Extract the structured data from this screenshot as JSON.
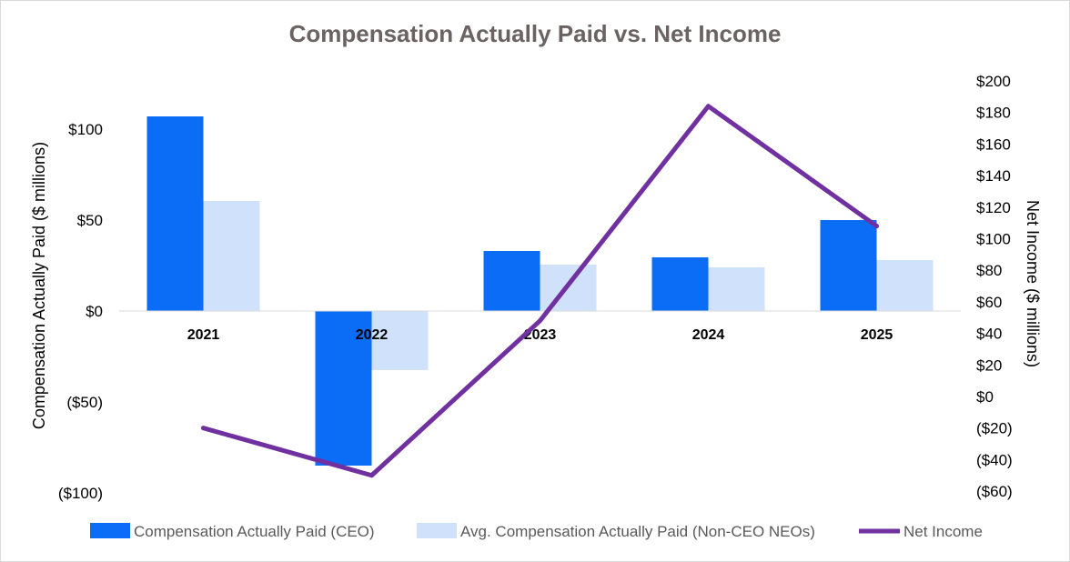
{
  "chart_data": {
    "type": "bar",
    "title": "Compensation Actually Paid vs. Net Income",
    "categories": [
      "2021",
      "2022",
      "2023",
      "2024",
      "2025"
    ],
    "series": [
      {
        "name": "Compensation Actually Paid (CEO)",
        "kind": "bar",
        "axis": "left",
        "color": "#0b6cf5",
        "values": [
          107,
          -85,
          33,
          29.5,
          50
        ]
      },
      {
        "name": "Avg. Compensation Actually Paid (Non-CEO NEOs)",
        "kind": "bar",
        "axis": "left",
        "color": "#cfe1fb",
        "values": [
          60.5,
          -32.5,
          25.5,
          24,
          28
        ]
      },
      {
        "name": "Net Income",
        "kind": "line",
        "axis": "right",
        "color": "#7030a0",
        "values": [
          -20,
          -50,
          48,
          184,
          108
        ]
      }
    ],
    "ylabel": "Compensation Actually Paid ($ millions)",
    "y2label": "Net Income ($ millions)",
    "ylim": [
      -100,
      100
    ],
    "y_ticks": [
      100,
      50,
      0,
      -50,
      -100
    ],
    "y_tick_labels": [
      "$100",
      "$50",
      "$0",
      "($50)",
      "($100)"
    ],
    "y2lim": [
      -60,
      200
    ],
    "y2_ticks": [
      200,
      180,
      160,
      140,
      120,
      100,
      80,
      60,
      40,
      20,
      0,
      -20,
      -40,
      -60
    ],
    "y2_tick_labels": [
      "$200",
      "$180",
      "$160",
      "$140",
      "$120",
      "$100",
      "$80",
      "$60",
      "$40",
      "$20",
      "$0",
      "($20)",
      "($40)",
      "($60)"
    ],
    "grid": false,
    "legend_position": "bottom"
  }
}
